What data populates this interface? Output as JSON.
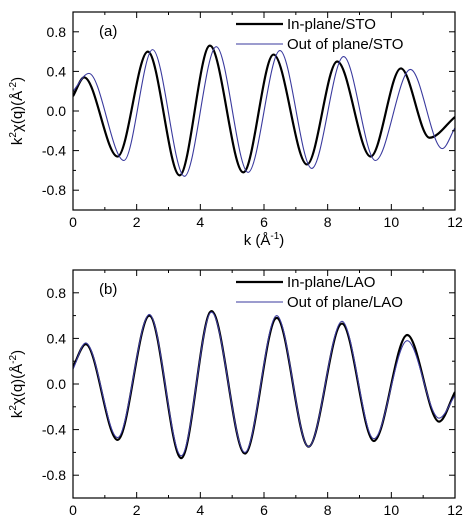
{
  "chart_data": [
    {
      "type": "line",
      "panel_label": "(a)",
      "xlabel_base": "k (Å",
      "xlabel_exp": "-1",
      "xlabel_tail": ")",
      "ylabel_k": "k",
      "ylabel_k_exp": "2",
      "ylabel_mid": "χ(q)(Å",
      "ylabel_exp": "-2",
      "ylabel_tail": ")",
      "xlim": [
        0,
        12
      ],
      "ylim": [
        -1.0,
        1.0
      ],
      "xticks": [
        "0",
        "2",
        "4",
        "6",
        "8",
        "10",
        "12"
      ],
      "yticks": [
        "0.8",
        "0.4",
        "0.0",
        "-0.4",
        "-0.8"
      ],
      "ytick_values": [
        0.8,
        0.4,
        0.0,
        -0.4,
        -0.8
      ],
      "grid": false,
      "legend_position": "top-right",
      "series": [
        {
          "name": "In-plane/STO",
          "color": "#000000",
          "x": [
            0.0,
            0.35,
            1.4,
            2.35,
            3.35,
            4.3,
            5.35,
            6.3,
            7.35,
            8.3,
            9.35,
            10.3,
            11.2,
            12.0
          ],
          "y": [
            0.15,
            0.34,
            -0.46,
            0.6,
            -0.65,
            0.66,
            -0.62,
            0.57,
            -0.54,
            0.5,
            -0.46,
            0.43,
            -0.27,
            -0.06
          ]
        },
        {
          "name": "Out of plane/STO",
          "color": "#3a3a9e",
          "x": [
            0.0,
            0.5,
            1.6,
            2.5,
            3.5,
            4.5,
            5.5,
            6.5,
            7.5,
            8.5,
            9.5,
            10.6,
            11.6,
            12.0
          ],
          "y": [
            0.2,
            0.38,
            -0.5,
            0.62,
            -0.66,
            0.65,
            -0.62,
            0.61,
            -0.58,
            0.55,
            -0.5,
            0.42,
            -0.38,
            -0.17
          ]
        }
      ]
    },
    {
      "type": "line",
      "panel_label": "(b)",
      "xlabel_base": "k (Å",
      "xlabel_exp": "-1",
      "xlabel_tail": ")",
      "ylabel_k": "k",
      "ylabel_k_exp": "2",
      "ylabel_mid": "χ(q)(Å",
      "ylabel_exp": "-2",
      "ylabel_tail": ")",
      "xlim": [
        0,
        12
      ],
      "ylim": [
        -1.0,
        1.0
      ],
      "xticks": [
        "0",
        "2",
        "4",
        "6",
        "8",
        "10",
        "12"
      ],
      "yticks": [
        "0.8",
        "0.4",
        "0.0",
        "-0.4",
        "-0.8"
      ],
      "ytick_values": [
        0.8,
        0.4,
        0.0,
        -0.4,
        -0.8
      ],
      "grid": false,
      "legend_position": "top-right",
      "series": [
        {
          "name": "In-plane/LAO",
          "color": "#000000",
          "x": [
            0.0,
            0.4,
            1.4,
            2.4,
            3.4,
            4.35,
            5.4,
            6.4,
            7.4,
            8.45,
            9.45,
            10.5,
            11.5,
            12.0
          ],
          "y": [
            0.15,
            0.35,
            -0.49,
            0.6,
            -0.65,
            0.64,
            -0.61,
            0.58,
            -0.55,
            0.53,
            -0.5,
            0.43,
            -0.33,
            -0.07
          ]
        },
        {
          "name": "Out of plane/LAO",
          "color": "#3a3a9e",
          "x": [
            0.0,
            0.4,
            1.4,
            2.4,
            3.4,
            4.35,
            5.4,
            6.4,
            7.4,
            8.45,
            9.45,
            10.5,
            11.5,
            12.0
          ],
          "y": [
            0.13,
            0.36,
            -0.47,
            0.61,
            -0.63,
            0.63,
            -0.6,
            0.6,
            -0.55,
            0.55,
            -0.48,
            0.38,
            -0.3,
            -0.1
          ]
        }
      ]
    }
  ]
}
